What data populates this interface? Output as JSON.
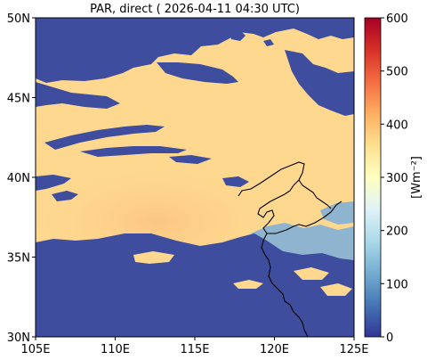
{
  "title": "PAR, direct ( 2026-04-11 04:30 UTC)",
  "map": {
    "x_ticks": [
      "105E",
      "110E",
      "115E",
      "120E",
      "125E"
    ],
    "y_ticks": [
      "30N",
      "35N",
      "40N",
      "45N",
      "50N"
    ],
    "lon_range": [
      105,
      125
    ],
    "lat_range": [
      30,
      50
    ]
  },
  "colorbar": {
    "label": "[Wm⁻²]",
    "ticks": [
      "0",
      "100",
      "200",
      "300",
      "400",
      "500",
      "600"
    ],
    "range": [
      0,
      600
    ],
    "colormap": "RdYlBu_r",
    "stops": [
      "#313695",
      "#4575b4",
      "#74add1",
      "#abd9e9",
      "#e0f3f8",
      "#ffffbf",
      "#fee090",
      "#fdae61",
      "#f46d43",
      "#d73027",
      "#a50026"
    ]
  },
  "colors": {
    "cloud_low": "#3e4d9e",
    "clear_sky": "#fed88f",
    "clear_sky_bright": "#fcc682",
    "haze": "#8fb4cf",
    "coastline": "#000000"
  }
}
